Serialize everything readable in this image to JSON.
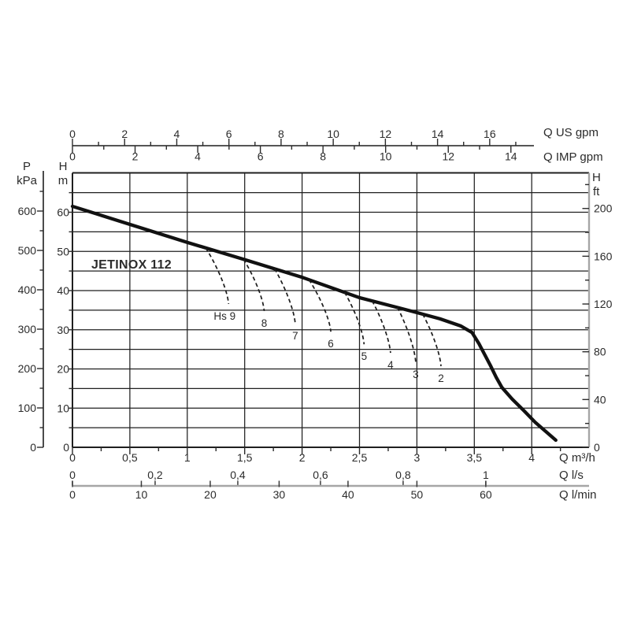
{
  "colors": {
    "ink": "#1f1f1f",
    "muted_axis_gray": "#a6a6a6",
    "text": "#2b2b2b",
    "background": "#ffffff"
  },
  "axes": {
    "us_gpm": {
      "unit_label": "Q US gpm",
      "major_ticks": [
        0,
        2,
        4,
        6,
        8,
        10,
        12,
        14,
        16
      ],
      "minor_ticks": [
        1,
        3,
        5,
        7,
        9,
        11,
        13,
        15,
        17
      ]
    },
    "imp_gpm": {
      "unit_label": "Q IMP gpm",
      "major_ticks": [
        0,
        2,
        4,
        6,
        8,
        10,
        12,
        14
      ],
      "minor_ticks": [
        1,
        3,
        5,
        7,
        9,
        11,
        13
      ]
    },
    "p_kpa": {
      "title_top": "P",
      "title_bottom": "kPa",
      "major_ticks": [
        0,
        100,
        200,
        300,
        400,
        500,
        600
      ],
      "minor_ticks": [
        50,
        150,
        250,
        350,
        450,
        550,
        650
      ]
    },
    "h_m": {
      "title_top": "H",
      "title_bottom": "m",
      "major_ticks": [
        0,
        10,
        20,
        30,
        40,
        50,
        60
      ],
      "grid_step_m": 5
    },
    "h_ft": {
      "title_top": "H",
      "title_bottom": "ft",
      "major_ticks": [
        0,
        40,
        80,
        120,
        160,
        200
      ],
      "minor_ticks": [
        20,
        60,
        100,
        140,
        180,
        220
      ]
    },
    "q_m3h": {
      "unit_label": "Q m³/h",
      "major_ticks": [
        {
          "v": 0,
          "t": "0"
        },
        {
          "v": 0.5,
          "t": "0,5"
        },
        {
          "v": 1,
          "t": "1"
        },
        {
          "v": 1.5,
          "t": "1,5"
        },
        {
          "v": 2,
          "t": "2"
        },
        {
          "v": 2.5,
          "t": "2,5"
        },
        {
          "v": 3,
          "t": "3"
        },
        {
          "v": 3.5,
          "t": "3,5"
        },
        {
          "v": 4,
          "t": "4"
        }
      ],
      "minor_ticks": [
        0.25,
        0.75,
        1.25,
        1.75,
        2.25,
        2.75,
        3.25,
        3.75,
        4.25
      ]
    },
    "q_ls": {
      "unit_label": "Q l/s",
      "major_ticks": [
        {
          "v": 0,
          "t": "0"
        },
        {
          "v": 0.2,
          "t": "0,2"
        },
        {
          "v": 0.4,
          "t": "0,4"
        },
        {
          "v": 0.6,
          "t": "0,6"
        },
        {
          "v": 0.8,
          "t": "0,8"
        },
        {
          "v": 1,
          "t": "1"
        }
      ]
    },
    "q_lmin": {
      "unit_label": "Q l/min",
      "major_ticks": [
        {
          "v": 0,
          "t": "0"
        },
        {
          "v": 10,
          "t": "10"
        },
        {
          "v": 20,
          "t": "20"
        },
        {
          "v": 30,
          "t": "30"
        },
        {
          "v": 40,
          "t": "40"
        },
        {
          "v": 50,
          "t": "50"
        },
        {
          "v": 60,
          "t": "60"
        }
      ]
    }
  },
  "chart_data": {
    "type": "line",
    "title": "JETINOX 112",
    "xlabel": "Q (m³/h · l/s · l/min · US gpm · IMP gpm)",
    "ylabel": "H (m · ft) / P (kPa)",
    "x_range_m3h": [
      0,
      4.5
    ],
    "y_range_m": [
      0,
      70
    ],
    "grid": true,
    "main_curve": {
      "name": "JETINOX 112 head curve",
      "units": [
        "m3/h",
        "m"
      ],
      "points": [
        [
          0,
          61.5
        ],
        [
          0.5,
          56.9
        ],
        [
          1.0,
          52.3
        ],
        [
          1.5,
          47.9
        ],
        [
          2.0,
          43.4
        ],
        [
          2.5,
          38.2
        ],
        [
          2.75,
          36.3
        ],
        [
          3.0,
          34.4
        ],
        [
          3.2,
          32.8
        ],
        [
          3.38,
          31.0
        ],
        [
          3.48,
          29.3
        ],
        [
          3.54,
          26.5
        ],
        [
          3.59,
          23.7
        ],
        [
          3.64,
          20.9
        ],
        [
          3.69,
          17.9
        ],
        [
          3.74,
          15.3
        ],
        [
          3.83,
          12.3
        ],
        [
          3.93,
          9.4
        ],
        [
          4.03,
          6.4
        ],
        [
          4.14,
          3.6
        ],
        [
          4.21,
          1.8
        ]
      ]
    },
    "hs_curves": [
      {
        "label": "Hs 9",
        "hs_m": 9,
        "q_start": 1.16,
        "q_end": 1.36,
        "h_end": 36.6
      },
      {
        "label": "8",
        "hs_m": 8,
        "q_start": 1.49,
        "q_end": 1.67,
        "h_end": 34.8
      },
      {
        "label": "7",
        "hs_m": 7,
        "q_start": 1.76,
        "q_end": 1.94,
        "h_end": 31.6
      },
      {
        "label": "6",
        "hs_m": 6,
        "q_start": 2.06,
        "q_end": 2.25,
        "h_end": 29.5
      },
      {
        "label": "5",
        "hs_m": 5,
        "q_start": 2.37,
        "q_end": 2.54,
        "h_end": 26.3
      },
      {
        "label": "4",
        "hs_m": 4,
        "q_start": 2.61,
        "q_end": 2.77,
        "h_end": 24.1
      },
      {
        "label": "3",
        "hs_m": 3,
        "q_start": 2.83,
        "q_end": 2.99,
        "h_end": 21.7
      },
      {
        "label": "2",
        "hs_m": 2,
        "q_start": 3.05,
        "q_end": 3.21,
        "h_end": 20.7
      }
    ]
  }
}
